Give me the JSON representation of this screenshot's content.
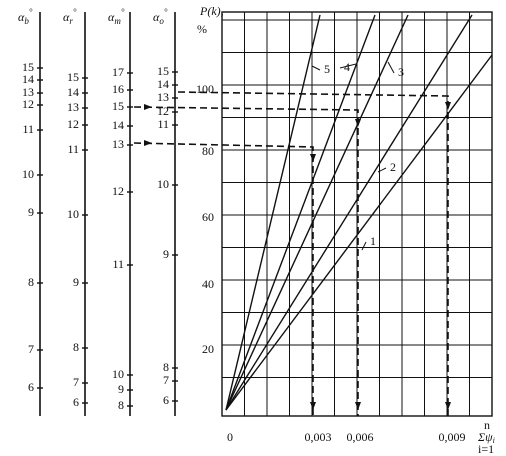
{
  "scales": [
    {
      "symbol": "α",
      "sub": "b",
      "unit": "°",
      "ticks": [
        "15",
        "14",
        "13",
        "12",
        "11",
        "10",
        "9",
        "8",
        "7",
        "6"
      ]
    },
    {
      "symbol": "α",
      "sub": "r",
      "unit": "°",
      "ticks": [
        "15",
        "14",
        "13",
        "12",
        "11",
        "10",
        "9",
        "8",
        "7",
        "6"
      ]
    },
    {
      "symbol": "α",
      "sub": "m",
      "unit": "°",
      "ticks": [
        "17",
        "16",
        "15",
        "14",
        "13",
        "12",
        "11",
        "10",
        "9",
        "8"
      ]
    },
    {
      "symbol": "α",
      "sub": "o",
      "unit": "°",
      "ticks": [
        "15",
        "14",
        "13",
        "12",
        "11",
        "10",
        "9",
        "8",
        "7",
        "6"
      ]
    }
  ],
  "chart": {
    "y_label": "P(k),",
    "y_unit": "%",
    "y_ticks": [
      "100",
      "80",
      "60",
      "40",
      "20"
    ],
    "x_ticks": [
      "0",
      "0,003",
      "0,006",
      "0,009"
    ],
    "x_label": "Σψ",
    "x_label_sub": "i",
    "sum_upper": "n",
    "sum_lower": "i=1",
    "lines": [
      "1",
      "2",
      "3",
      "4",
      "5"
    ]
  }
}
